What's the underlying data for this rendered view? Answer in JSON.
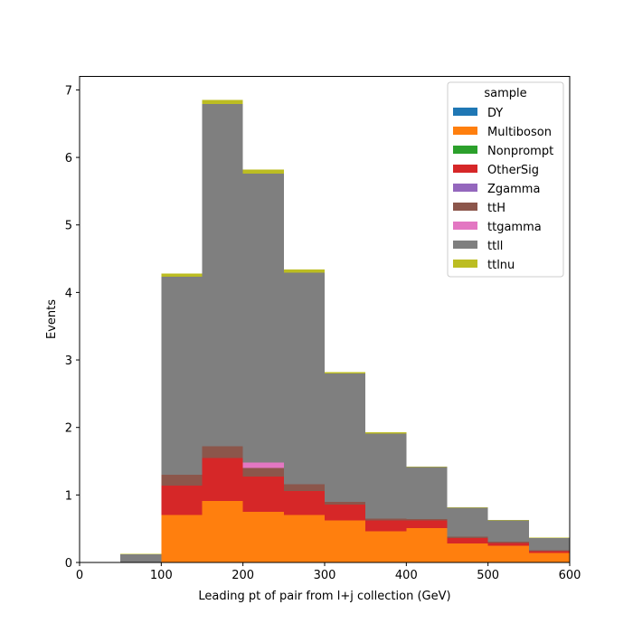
{
  "chart_data": {
    "type": "bar",
    "stacked": true,
    "title": "",
    "xlabel": "Leading pt of pair from l+j collection (GeV)",
    "ylabel": "Events",
    "xlim": [
      0,
      600
    ],
    "ylim": [
      0,
      7.2
    ],
    "xticks": [
      0,
      100,
      200,
      300,
      400,
      500,
      600
    ],
    "yticks": [
      0,
      1,
      2,
      3,
      4,
      5,
      6,
      7
    ],
    "grid": false,
    "legend": {
      "title": "sample",
      "placement": "top-right"
    },
    "bin_edges": [
      50,
      100,
      150,
      200,
      250,
      300,
      350,
      400,
      450,
      500,
      550,
      600
    ],
    "series": [
      {
        "name": "DY",
        "color": "#1f77b4",
        "values": [
          0,
          0,
          0,
          0,
          0,
          0,
          0,
          0,
          0,
          0,
          0
        ]
      },
      {
        "name": "Multiboson",
        "color": "#ff7f0e",
        "values": [
          0.01,
          0.7,
          0.91,
          0.75,
          0.7,
          0.62,
          0.46,
          0.51,
          0.28,
          0.25,
          0.14
        ]
      },
      {
        "name": "Nonprompt",
        "color": "#2ca02c",
        "values": [
          0,
          0,
          0,
          0,
          0,
          0,
          0,
          0,
          0,
          0,
          0
        ]
      },
      {
        "name": "OtherSig",
        "color": "#d62728",
        "values": [
          0,
          0.44,
          0.64,
          0.52,
          0.36,
          0.24,
          0.16,
          0.11,
          0.08,
          0.04,
          0.03
        ]
      },
      {
        "name": "Zgamma",
        "color": "#9467bd",
        "values": [
          0,
          0,
          0,
          0,
          0,
          0,
          0,
          0,
          0,
          0,
          0
        ]
      },
      {
        "name": "ttH",
        "color": "#8c564b",
        "values": [
          0,
          0.16,
          0.17,
          0.13,
          0.1,
          0.04,
          0.03,
          0.02,
          0.02,
          0.02,
          0.01
        ]
      },
      {
        "name": "ttgamma",
        "color": "#e377c2",
        "values": [
          0,
          0,
          0,
          0.08,
          0,
          0,
          0,
          0,
          0,
          0,
          0
        ]
      },
      {
        "name": "ttll",
        "color": "#7f7f7f",
        "values": [
          0.11,
          2.93,
          5.07,
          4.28,
          3.13,
          1.9,
          1.26,
          0.77,
          0.43,
          0.31,
          0.18
        ]
      },
      {
        "name": "ttlnu",
        "color": "#bcbd22",
        "values": [
          0.01,
          0.05,
          0.06,
          0.06,
          0.05,
          0.02,
          0.02,
          0.01,
          0.01,
          0.01,
          0.01
        ]
      }
    ]
  }
}
